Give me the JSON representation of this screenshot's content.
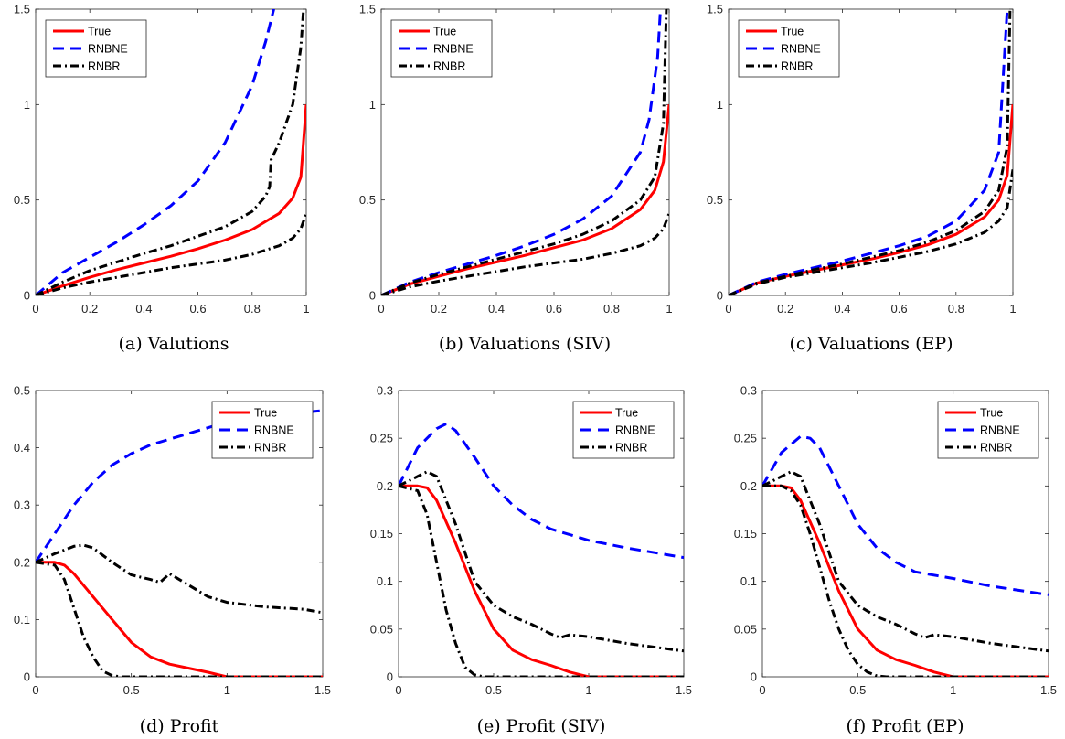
{
  "legend_labels": [
    "True",
    "RNBNE",
    "RNBR"
  ],
  "series_styles": [
    {
      "name": "True",
      "color": "#ff0000",
      "dash": "solid"
    },
    {
      "name": "RNBNE",
      "color": "#0000ff",
      "dash": "dashed"
    },
    {
      "name": "RNBR",
      "color": "#000000",
      "dash": "dashdot"
    }
  ],
  "chart_data": [
    {
      "type": "line",
      "caption": "(a) Valutions",
      "xlim": [
        0,
        1
      ],
      "ylim": [
        0,
        1.5
      ],
      "xticks": [
        0,
        0.2,
        0.4,
        0.6,
        0.8,
        1
      ],
      "xtick_labels": [
        "0",
        "0.2",
        "0.4",
        "0.6",
        "0.8",
        "1"
      ],
      "yticks": [
        0,
        0.5,
        1,
        1.5
      ],
      "ytick_labels": [
        "0",
        "0.5",
        "1",
        "1.5"
      ],
      "legend": "top-left",
      "series": [
        {
          "name": "True",
          "x": [
            0,
            0.1,
            0.2,
            0.3,
            0.4,
            0.5,
            0.6,
            0.7,
            0.8,
            0.9,
            0.95,
            0.98,
            1
          ],
          "y": [
            0,
            0.05,
            0.095,
            0.135,
            0.17,
            0.205,
            0.245,
            0.29,
            0.345,
            0.43,
            0.51,
            0.62,
            1.0
          ]
        },
        {
          "name": "RNBNE",
          "x": [
            0,
            0.1,
            0.2,
            0.3,
            0.4,
            0.5,
            0.6,
            0.7,
            0.8,
            0.85,
            0.88
          ],
          "y": [
            0,
            0.12,
            0.2,
            0.28,
            0.37,
            0.47,
            0.6,
            0.8,
            1.1,
            1.33,
            1.5
          ]
        },
        {
          "name": "RNBR",
          "x": [
            0,
            0.1,
            0.2,
            0.3,
            0.4,
            0.5,
            0.6,
            0.7,
            0.8,
            0.85,
            0.865,
            0.87,
            0.9,
            0.95,
            0.98,
            0.99
          ],
          "y": [
            0,
            0.07,
            0.13,
            0.175,
            0.22,
            0.26,
            0.31,
            0.36,
            0.44,
            0.52,
            0.57,
            0.71,
            0.8,
            1.0,
            1.3,
            1.5
          ]
        },
        {
          "name": "RNBR",
          "x": [
            0,
            0.1,
            0.2,
            0.3,
            0.4,
            0.5,
            0.6,
            0.7,
            0.8,
            0.9,
            0.95,
            0.98,
            1
          ],
          "y": [
            0,
            0.04,
            0.07,
            0.095,
            0.12,
            0.145,
            0.165,
            0.185,
            0.215,
            0.26,
            0.3,
            0.35,
            0.43
          ]
        }
      ]
    },
    {
      "type": "line",
      "caption": "(b) Valuations (SIV)",
      "xlim": [
        0,
        1
      ],
      "ylim": [
        0,
        1.5
      ],
      "xticks": [
        0,
        0.2,
        0.4,
        0.6,
        0.8,
        1
      ],
      "xtick_labels": [
        "0",
        "0.2",
        "0.4",
        "0.6",
        "0.8",
        "1"
      ],
      "yticks": [
        0,
        0.5,
        1,
        1.5
      ],
      "ytick_labels": [
        "0",
        "0.5",
        "1",
        "1.5"
      ],
      "legend": "top-left",
      "series": [
        {
          "name": "True",
          "x": [
            0,
            0.1,
            0.2,
            0.3,
            0.4,
            0.5,
            0.6,
            0.7,
            0.8,
            0.9,
            0.95,
            0.98,
            1
          ],
          "y": [
            0,
            0.06,
            0.1,
            0.14,
            0.175,
            0.21,
            0.25,
            0.29,
            0.35,
            0.45,
            0.55,
            0.7,
            1.0
          ]
        },
        {
          "name": "RNBNE",
          "x": [
            0,
            0.1,
            0.2,
            0.3,
            0.4,
            0.5,
            0.6,
            0.7,
            0.8,
            0.9,
            0.93,
            0.96,
            0.97
          ],
          "y": [
            0,
            0.07,
            0.12,
            0.165,
            0.21,
            0.26,
            0.32,
            0.4,
            0.52,
            0.75,
            0.92,
            1.25,
            1.5
          ]
        },
        {
          "name": "RNBR",
          "x": [
            0,
            0.1,
            0.2,
            0.3,
            0.4,
            0.5,
            0.6,
            0.7,
            0.8,
            0.9,
            0.95,
            0.98,
            0.99
          ],
          "y": [
            0,
            0.065,
            0.11,
            0.15,
            0.19,
            0.23,
            0.27,
            0.32,
            0.39,
            0.5,
            0.62,
            0.9,
            1.5
          ]
        },
        {
          "name": "RNBR",
          "x": [
            0,
            0.1,
            0.2,
            0.3,
            0.4,
            0.5,
            0.6,
            0.7,
            0.8,
            0.9,
            0.95,
            0.98,
            1
          ],
          "y": [
            0,
            0.045,
            0.075,
            0.1,
            0.125,
            0.15,
            0.17,
            0.19,
            0.22,
            0.26,
            0.3,
            0.35,
            0.43
          ]
        }
      ]
    },
    {
      "type": "line",
      "caption": "(c) Valuations (EP)",
      "xlim": [
        0,
        1
      ],
      "ylim": [
        0,
        1.5
      ],
      "xticks": [
        0,
        0.2,
        0.4,
        0.6,
        0.8,
        1
      ],
      "xtick_labels": [
        "0",
        "0.2",
        "0.4",
        "0.6",
        "0.8",
        "1"
      ],
      "yticks": [
        0,
        0.5,
        1,
        1.5
      ],
      "ytick_labels": [
        "0",
        "0.5",
        "1",
        "1.5"
      ],
      "legend": "top-left",
      "series": [
        {
          "name": "True",
          "x": [
            0,
            0.1,
            0.2,
            0.3,
            0.4,
            0.5,
            0.6,
            0.7,
            0.8,
            0.9,
            0.95,
            0.98,
            1
          ],
          "y": [
            0,
            0.065,
            0.1,
            0.13,
            0.16,
            0.19,
            0.225,
            0.265,
            0.32,
            0.41,
            0.5,
            0.63,
            1.0
          ]
        },
        {
          "name": "RNBNE",
          "x": [
            0,
            0.1,
            0.2,
            0.3,
            0.4,
            0.5,
            0.6,
            0.7,
            0.8,
            0.9,
            0.95,
            0.98
          ],
          "y": [
            0,
            0.07,
            0.11,
            0.145,
            0.18,
            0.22,
            0.26,
            0.31,
            0.39,
            0.55,
            0.75,
            1.5
          ]
        },
        {
          "name": "RNBR",
          "x": [
            0,
            0.1,
            0.2,
            0.3,
            0.4,
            0.5,
            0.6,
            0.7,
            0.8,
            0.9,
            0.95,
            0.98,
            0.99
          ],
          "y": [
            0,
            0.065,
            0.1,
            0.135,
            0.165,
            0.2,
            0.235,
            0.28,
            0.34,
            0.44,
            0.55,
            0.78,
            1.5
          ]
        },
        {
          "name": "RNBR",
          "x": [
            0,
            0.1,
            0.2,
            0.3,
            0.4,
            0.5,
            0.6,
            0.7,
            0.8,
            0.9,
            0.95,
            0.98,
            1
          ],
          "y": [
            0,
            0.06,
            0.095,
            0.12,
            0.145,
            0.17,
            0.2,
            0.23,
            0.27,
            0.33,
            0.39,
            0.46,
            0.66
          ]
        }
      ]
    },
    {
      "type": "line",
      "caption": "(d) Profit",
      "xlim": [
        0,
        1.5
      ],
      "ylim": [
        0,
        0.5
      ],
      "xticks": [
        0,
        0.5,
        1,
        1.5
      ],
      "xtick_labels": [
        "0",
        "0.5",
        "1",
        "1.5"
      ],
      "yticks": [
        0,
        0.1,
        0.2,
        0.3,
        0.4,
        0.5
      ],
      "ytick_labels": [
        "0",
        "0.1",
        "0.2",
        "0.3",
        "0.4",
        "0.5"
      ],
      "legend": "top-right",
      "series": [
        {
          "name": "True",
          "x": [
            0,
            0.1,
            0.15,
            0.2,
            0.3,
            0.4,
            0.5,
            0.6,
            0.7,
            0.8,
            0.9,
            1.0,
            1.5
          ],
          "y": [
            0.2,
            0.2,
            0.195,
            0.18,
            0.14,
            0.1,
            0.06,
            0.035,
            0.022,
            0.015,
            0.008,
            0.0,
            0.0
          ]
        },
        {
          "name": "RNBNE",
          "x": [
            0,
            0.1,
            0.2,
            0.3,
            0.4,
            0.5,
            0.6,
            0.7,
            0.8,
            0.9,
            1.0,
            1.2,
            1.5
          ],
          "y": [
            0.2,
            0.25,
            0.3,
            0.34,
            0.37,
            0.39,
            0.405,
            0.415,
            0.425,
            0.435,
            0.445,
            0.455,
            0.465
          ]
        },
        {
          "name": "RNBR",
          "x": [
            0,
            0.1,
            0.2,
            0.25,
            0.3,
            0.4,
            0.5,
            0.6,
            0.65,
            0.7,
            0.8,
            0.9,
            1.0,
            1.2,
            1.4,
            1.5
          ],
          "y": [
            0.2,
            0.215,
            0.228,
            0.23,
            0.225,
            0.2,
            0.178,
            0.17,
            0.165,
            0.18,
            0.16,
            0.14,
            0.13,
            0.122,
            0.118,
            0.112
          ]
        },
        {
          "name": "RNBR",
          "x": [
            0,
            0.1,
            0.15,
            0.2,
            0.25,
            0.3,
            0.35,
            0.4,
            0.45,
            1.5
          ],
          "y": [
            0.2,
            0.195,
            0.17,
            0.12,
            0.07,
            0.035,
            0.01,
            0.002,
            0.0,
            0.0
          ]
        }
      ]
    },
    {
      "type": "line",
      "caption": "(e) Profit (SIV)",
      "xlim": [
        0,
        1.5
      ],
      "ylim": [
        0,
        0.3
      ],
      "xticks": [
        0,
        0.5,
        1,
        1.5
      ],
      "xtick_labels": [
        "0",
        "0.5",
        "1",
        "1.5"
      ],
      "yticks": [
        0,
        0.05,
        0.1,
        0.15,
        0.2,
        0.25,
        0.3
      ],
      "ytick_labels": [
        "0",
        "0.05",
        "0.1",
        "0.15",
        "0.2",
        "0.25",
        "0.3"
      ],
      "legend": "top-right",
      "series": [
        {
          "name": "True",
          "x": [
            0,
            0.1,
            0.15,
            0.2,
            0.3,
            0.4,
            0.5,
            0.6,
            0.7,
            0.8,
            0.9,
            1.0,
            1.5
          ],
          "y": [
            0.2,
            0.2,
            0.198,
            0.185,
            0.14,
            0.09,
            0.05,
            0.028,
            0.018,
            0.012,
            0.005,
            0.0,
            0.0
          ]
        },
        {
          "name": "RNBNE",
          "x": [
            0,
            0.1,
            0.2,
            0.25,
            0.3,
            0.4,
            0.5,
            0.6,
            0.7,
            0.8,
            1.0,
            1.2,
            1.5
          ],
          "y": [
            0.2,
            0.24,
            0.26,
            0.265,
            0.258,
            0.23,
            0.2,
            0.18,
            0.165,
            0.155,
            0.143,
            0.135,
            0.125
          ]
        },
        {
          "name": "RNBR",
          "x": [
            0,
            0.1,
            0.15,
            0.2,
            0.3,
            0.4,
            0.5,
            0.6,
            0.7,
            0.8,
            0.85,
            0.9,
            1.0,
            1.2,
            1.5
          ],
          "y": [
            0.2,
            0.21,
            0.215,
            0.21,
            0.16,
            0.1,
            0.075,
            0.063,
            0.055,
            0.045,
            0.041,
            0.044,
            0.042,
            0.035,
            0.027
          ]
        },
        {
          "name": "RNBR",
          "x": [
            0,
            0.1,
            0.15,
            0.2,
            0.25,
            0.3,
            0.35,
            0.4,
            0.45,
            1.5
          ],
          "y": [
            0.2,
            0.195,
            0.17,
            0.12,
            0.07,
            0.035,
            0.01,
            0.002,
            0.0,
            0.0
          ]
        }
      ]
    },
    {
      "type": "line",
      "caption": "(f) Profit (EP)",
      "xlim": [
        0,
        1.5
      ],
      "ylim": [
        0,
        0.3
      ],
      "xticks": [
        0,
        0.5,
        1,
        1.5
      ],
      "xtick_labels": [
        "0",
        "0.5",
        "1",
        "1.5"
      ],
      "yticks": [
        0,
        0.05,
        0.1,
        0.15,
        0.2,
        0.25,
        0.3
      ],
      "ytick_labels": [
        "0",
        "0.05",
        "0.1",
        "0.15",
        "0.2",
        "0.25",
        "0.3"
      ],
      "legend": "top-right",
      "series": [
        {
          "name": "True",
          "x": [
            0,
            0.1,
            0.15,
            0.2,
            0.3,
            0.4,
            0.5,
            0.6,
            0.7,
            0.8,
            0.9,
            1.0,
            1.5
          ],
          "y": [
            0.2,
            0.2,
            0.198,
            0.185,
            0.14,
            0.09,
            0.05,
            0.028,
            0.018,
            0.012,
            0.005,
            0.0,
            0.0
          ]
        },
        {
          "name": "RNBNE",
          "x": [
            0,
            0.1,
            0.2,
            0.25,
            0.3,
            0.4,
            0.5,
            0.6,
            0.7,
            0.8,
            1.0,
            1.2,
            1.5
          ],
          "y": [
            0.2,
            0.235,
            0.252,
            0.25,
            0.24,
            0.2,
            0.16,
            0.135,
            0.12,
            0.11,
            0.103,
            0.095,
            0.086
          ]
        },
        {
          "name": "RNBR",
          "x": [
            0,
            0.1,
            0.15,
            0.2,
            0.3,
            0.4,
            0.5,
            0.6,
            0.7,
            0.8,
            0.85,
            0.9,
            1.0,
            1.2,
            1.5
          ],
          "y": [
            0.2,
            0.21,
            0.215,
            0.21,
            0.16,
            0.1,
            0.075,
            0.063,
            0.055,
            0.045,
            0.041,
            0.044,
            0.042,
            0.035,
            0.027
          ]
        },
        {
          "name": "RNBR",
          "x": [
            0,
            0.1,
            0.15,
            0.2,
            0.25,
            0.3,
            0.35,
            0.4,
            0.45,
            0.5,
            0.55,
            0.6,
            0.65,
            0.7,
            1.5
          ],
          "y": [
            0.2,
            0.2,
            0.195,
            0.18,
            0.15,
            0.115,
            0.08,
            0.05,
            0.028,
            0.013,
            0.005,
            0.001,
            0.0,
            0.0,
            0.0
          ]
        }
      ]
    }
  ]
}
